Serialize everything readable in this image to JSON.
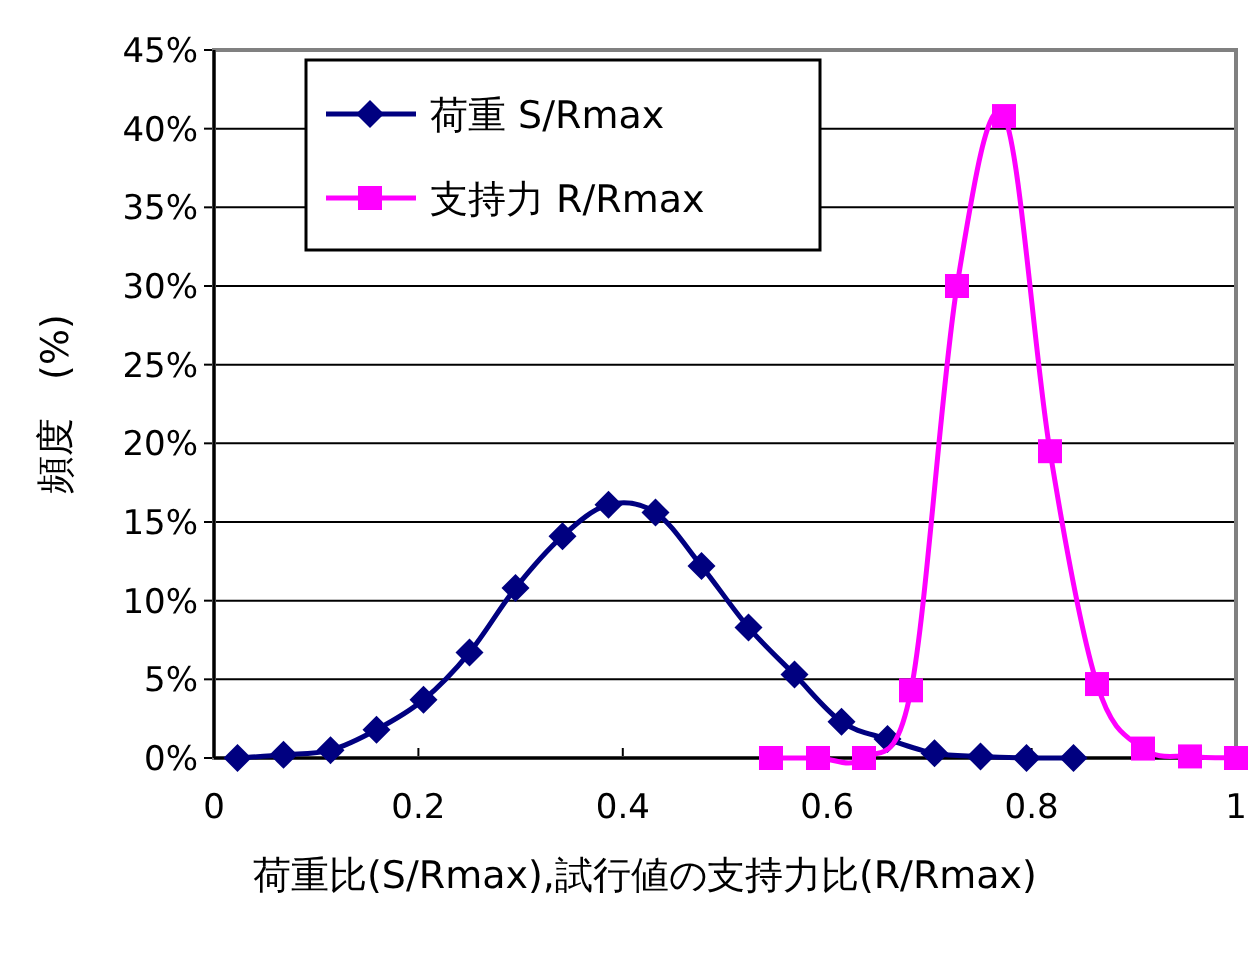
{
  "chart_data": {
    "type": "line",
    "xlabel": "荷重比(S/Rmax),試行値の支持力比(R/Rmax)",
    "ylabel": "頻度　(%)",
    "xlim": [
      0,
      1
    ],
    "ylim": [
      0,
      45
    ],
    "xticks": [
      0,
      0.2,
      0.4,
      0.6,
      0.8,
      1
    ],
    "yticks": [
      {
        "value": 0,
        "label": "0%"
      },
      {
        "value": 5,
        "label": "5%"
      },
      {
        "value": 10,
        "label": "10%"
      },
      {
        "value": 15,
        "label": "15%"
      },
      {
        "value": 20,
        "label": "20%"
      },
      {
        "value": 25,
        "label": "25%"
      },
      {
        "value": 30,
        "label": "30%"
      },
      {
        "value": 35,
        "label": "35%"
      },
      {
        "value": 40,
        "label": "40%"
      },
      {
        "value": 45,
        "label": "45%"
      }
    ],
    "grid": "y",
    "legend": "top left",
    "series": [
      {
        "name": "荷重 S/Rmax",
        "color": "#000080",
        "marker": "diamond",
        "x": [
          0.023,
          0.068,
          0.114,
          0.159,
          0.205,
          0.25,
          0.295,
          0.341,
          0.386,
          0.432,
          0.477,
          0.523,
          0.568,
          0.614,
          0.659,
          0.705,
          0.75,
          0.795,
          0.841
        ],
        "values": [
          0,
          0.2,
          0.5,
          1.8,
          3.7,
          6.7,
          10.8,
          14.1,
          16.1,
          15.6,
          12.2,
          8.3,
          5.3,
          2.3,
          1.2,
          0.3,
          0.1,
          0,
          0
        ]
      },
      {
        "name": "支持力 R/Rmax",
        "color": "#ff00ff",
        "marker": "square",
        "x": [
          0.545,
          0.591,
          0.636,
          0.682,
          0.727,
          0.773,
          0.818,
          0.864,
          0.909,
          0.955,
          1
        ],
        "values": [
          0,
          0,
          0,
          4.3,
          30,
          40.8,
          19.5,
          4.7,
          0.6,
          0.1,
          0
        ]
      }
    ]
  }
}
